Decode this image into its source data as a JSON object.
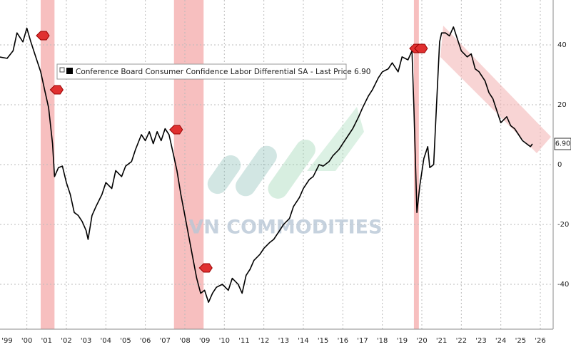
{
  "chart_data": {
    "type": "line",
    "watermark": "VN COMMODITIES",
    "x": [
      1999.1,
      1999.5,
      1999.8,
      2000.0,
      2000.3,
      2000.5,
      2000.7,
      2000.9,
      2001.2,
      2001.4,
      2001.6,
      2001.8,
      2001.9,
      2002.1,
      2002.3,
      2002.5,
      2002.7,
      2002.9,
      2003.1,
      2003.3,
      2003.5,
      2003.6,
      2003.8,
      2004.0,
      2004.3,
      2004.5,
      2004.8,
      2005.0,
      2005.3,
      2005.5,
      2005.8,
      2006.0,
      2006.3,
      2006.5,
      2006.7,
      2006.9,
      2007.1,
      2007.3,
      2007.5,
      2007.7,
      2007.9,
      2008.1,
      2008.3,
      2008.5,
      2008.7,
      2008.9,
      2009.1,
      2009.3,
      2009.5,
      2009.7,
      2009.9,
      2010.1,
      2010.4,
      2010.7,
      2010.9,
      2011.2,
      2011.4,
      2011.6,
      2011.8,
      2012.0,
      2012.3,
      2012.5,
      2012.8,
      2013.0,
      2013.3,
      2013.5,
      2013.8,
      2014.0,
      2014.3,
      2014.5,
      2014.8,
      2015.0,
      2015.3,
      2015.5,
      2015.8,
      2016.0,
      2016.3,
      2016.5,
      2016.8,
      2017.0,
      2017.3,
      2017.5,
      2017.8,
      2018.0,
      2018.3,
      2018.5,
      2018.8,
      2019.0,
      2019.3,
      2019.5,
      2019.8,
      2020.0,
      2020.1,
      2020.25,
      2020.4,
      2020.6,
      2020.8,
      2020.9,
      2021.1,
      2021.2,
      2021.4,
      2021.5,
      2021.7,
      2021.9,
      2022.1,
      2022.3,
      2022.5,
      2022.8,
      2023.0,
      2023.2,
      2023.4,
      2023.7,
      2023.9,
      2024.1,
      2024.3,
      2024.5,
      2024.8,
      2025.0,
      2025.2,
      2025.4,
      2025.6,
      2025.8,
      2026.0,
      2026.1
    ],
    "series": [
      {
        "name": "Conference Board Consumer Confidence Labor Differential SA - Last Price 6.90",
        "color": "#000000",
        "last_label": "6.90",
        "values": [
          36,
          35.5,
          38,
          44,
          41,
          45.6,
          41,
          37,
          31,
          25,
          19,
          7,
          -4,
          -1,
          -0.5,
          -6,
          -10,
          -16,
          -17,
          -19,
          -22,
          -25,
          -17,
          -14,
          -10,
          -6,
          -8,
          -2,
          -4,
          -0.5,
          1,
          5,
          10,
          8,
          11,
          7,
          11,
          8,
          12,
          10,
          4,
          -2,
          -10,
          -17,
          -24,
          -31,
          -38,
          -43,
          -42,
          -46,
          -43,
          -41,
          -40,
          -42,
          -38,
          -40,
          -43,
          -37,
          -35,
          -32,
          -30,
          -28,
          -26,
          -25,
          -22,
          -20,
          -18,
          -14,
          -11,
          -8,
          -5,
          -4,
          0,
          -0.5,
          1,
          3,
          5,
          7,
          10,
          12,
          16,
          19,
          23,
          25,
          29,
          31,
          32,
          34,
          31,
          36,
          35,
          38,
          19,
          -16,
          -7,
          2,
          6,
          -1,
          0,
          14,
          41,
          44,
          44,
          43,
          46,
          42,
          38,
          36,
          37,
          32,
          31,
          28,
          24,
          22,
          18,
          14,
          16,
          13,
          12,
          10,
          8,
          7,
          6,
          6.9
        ]
      }
    ],
    "recessions": [
      [
        2001.2,
        2001.9
      ],
      [
        2007.95,
        2009.45
      ],
      [
        2020.1,
        2020.35
      ]
    ],
    "xlim": [
      1999.14,
      2027.15
    ],
    "ylim": [
      -55,
      55
    ],
    "xticks": [
      {
        "value": 1999.5,
        "label": "'99"
      },
      {
        "value": 2000.5,
        "label": "'00"
      },
      {
        "value": 2001.5,
        "label": "'01"
      },
      {
        "value": 2002.5,
        "label": "'02"
      },
      {
        "value": 2003.5,
        "label": "'03"
      },
      {
        "value": 2004.5,
        "label": "'04"
      },
      {
        "value": 2005.5,
        "label": "'05"
      },
      {
        "value": 2006.5,
        "label": "'06"
      },
      {
        "value": 2007.5,
        "label": "'07"
      },
      {
        "value": 2008.5,
        "label": "'08"
      },
      {
        "value": 2009.5,
        "label": "'09"
      },
      {
        "value": 2010.5,
        "label": "'10"
      },
      {
        "value": 2011.5,
        "label": "'11"
      },
      {
        "value": 2012.5,
        "label": "'12"
      },
      {
        "value": 2013.5,
        "label": "'13"
      },
      {
        "value": 2014.5,
        "label": "'14"
      },
      {
        "value": 2015.5,
        "label": "'15"
      },
      {
        "value": 2016.5,
        "label": "'16"
      },
      {
        "value": 2017.5,
        "label": "'17"
      },
      {
        "value": 2018.5,
        "label": "'18"
      },
      {
        "value": 2019.5,
        "label": "'19"
      },
      {
        "value": 2020.5,
        "label": "'20"
      },
      {
        "value": 2021.5,
        "label": "'21"
      },
      {
        "value": 2022.5,
        "label": "'22"
      },
      {
        "value": 2023.5,
        "label": "'23"
      },
      {
        "value": 2024.5,
        "label": "'24"
      },
      {
        "value": 2025.5,
        "label": "'25"
      },
      {
        "value": 2026.5,
        "label": "'26"
      }
    ],
    "yticks": [
      40,
      20,
      0,
      -20,
      -40
    ],
    "grid": true
  }
}
